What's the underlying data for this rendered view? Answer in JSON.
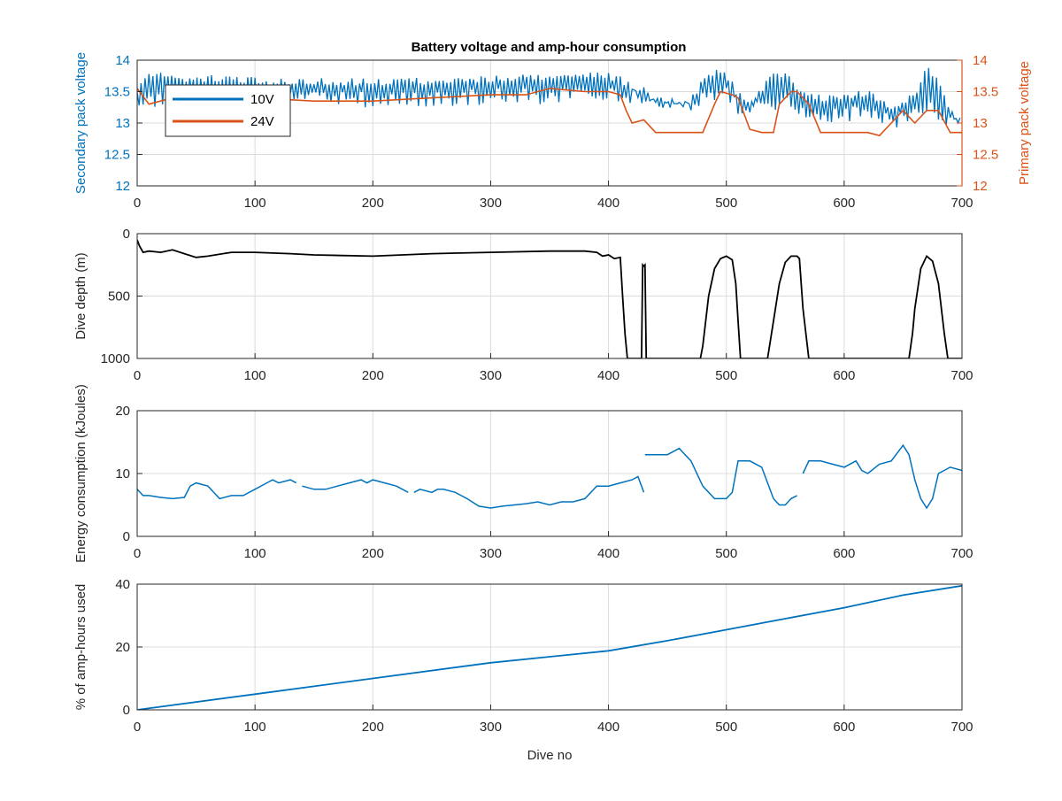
{
  "figure_title": "Battery voltage and amp-hour consumption",
  "colors": {
    "series_10v": "#0072BD",
    "series_24v": "#D95319",
    "depth": "#000000",
    "energy": "#0072BD",
    "amp_hours": "#0072BD",
    "grid": "#dcdcdc",
    "axis": "#262626"
  },
  "chart_data": [
    {
      "type": "line",
      "title": "Battery voltage and amp-hour consumption",
      "xlabel": "",
      "ylabel": "Secondary pack voltage",
      "ylabel_right": "Primary pack voltage",
      "xlim": [
        0,
        700
      ],
      "ylim": [
        12,
        14
      ],
      "ylim_right": [
        12,
        14
      ],
      "xticks": [
        "0",
        "100",
        "200",
        "300",
        "400",
        "500",
        "600",
        "700"
      ],
      "yticks": [
        "12",
        "12.5",
        "13",
        "13.5",
        "14"
      ],
      "yticks_right": [
        "12",
        "12.5",
        "13",
        "13.5",
        "14"
      ],
      "grid": true,
      "legend_placement": "top-left",
      "series": [
        {
          "name": "10V",
          "axis": "left",
          "x": [
            0,
            5,
            10,
            20,
            40,
            60,
            80,
            100,
            130,
            150,
            200,
            250,
            300,
            350,
            380,
            400,
            410,
            420,
            430,
            440,
            460,
            470,
            480,
            490,
            500,
            510,
            520,
            540,
            550,
            560,
            580,
            600,
            620,
            640,
            660,
            670,
            680,
            690,
            700
          ],
          "upper": [
            13.6,
            13.75,
            13.8,
            13.8,
            13.78,
            13.77,
            13.75,
            13.73,
            13.7,
            13.72,
            13.72,
            13.72,
            13.76,
            13.8,
            13.82,
            13.8,
            13.78,
            13.6,
            13.6,
            13.35,
            13.35,
            13.4,
            13.75,
            13.85,
            13.85,
            13.5,
            13.4,
            13.8,
            13.85,
            13.6,
            13.45,
            13.5,
            13.55,
            13.3,
            13.5,
            13.95,
            13.7,
            13.2,
            13.1
          ],
          "lower": [
            13.3,
            13.2,
            13.25,
            13.25,
            13.25,
            13.25,
            13.25,
            13.25,
            13.25,
            13.25,
            13.25,
            13.25,
            13.3,
            13.3,
            13.35,
            13.3,
            13.3,
            13.3,
            13.2,
            13.25,
            13.25,
            13.2,
            13.25,
            13.3,
            13.4,
            13.1,
            13.1,
            13.15,
            13.3,
            13.1,
            13.0,
            13.0,
            13.05,
            12.9,
            13.0,
            13.1,
            13.05,
            12.9,
            12.95
          ]
        },
        {
          "name": "24V",
          "axis": "right",
          "x": [
            0,
            10,
            30,
            60,
            100,
            150,
            200,
            250,
            300,
            330,
            350,
            380,
            400,
            410,
            415,
            420,
            430,
            440,
            460,
            480,
            490,
            495,
            505,
            510,
            520,
            530,
            540,
            545,
            555,
            560,
            570,
            580,
            600,
            620,
            630,
            640,
            650,
            660,
            670,
            680,
            690,
            700
          ],
          "y": [
            13.55,
            13.3,
            13.4,
            13.45,
            13.4,
            13.35,
            13.35,
            13.4,
            13.45,
            13.45,
            13.55,
            13.5,
            13.5,
            13.45,
            13.2,
            13.0,
            13.05,
            12.85,
            12.85,
            12.85,
            13.3,
            13.5,
            13.45,
            13.4,
            12.9,
            12.85,
            12.85,
            13.3,
            13.5,
            13.5,
            13.3,
            12.85,
            12.85,
            12.85,
            12.8,
            13.0,
            13.2,
            13.0,
            13.2,
            13.2,
            12.85,
            12.85
          ]
        }
      ]
    },
    {
      "type": "line",
      "xlabel": "",
      "ylabel": "Dive depth (m)",
      "xlim": [
        0,
        700
      ],
      "ylim": [
        0,
        1000
      ],
      "y_reversed": true,
      "xticks": [
        "0",
        "100",
        "200",
        "300",
        "400",
        "500",
        "600",
        "700"
      ],
      "yticks": [
        "0",
        "500",
        "1000"
      ],
      "grid": true,
      "series": [
        {
          "name": "",
          "x": [
            0,
            2,
            5,
            10,
            20,
            30,
            40,
            50,
            60,
            80,
            100,
            130,
            150,
            200,
            250,
            300,
            350,
            380,
            390,
            395,
            400,
            405,
            410,
            412,
            414,
            416,
            418,
            420,
            425,
            428,
            429,
            430,
            431,
            432,
            433,
            435,
            440,
            460,
            478,
            480,
            485,
            490,
            495,
            500,
            505,
            508,
            510,
            512,
            520,
            530,
            535,
            540,
            545,
            550,
            555,
            560,
            562,
            565,
            570,
            600,
            620,
            650,
            655,
            658,
            660,
            665,
            670,
            675,
            680,
            685,
            688,
            690,
            700
          ],
          "y": [
            50,
            100,
            150,
            140,
            150,
            130,
            160,
            190,
            180,
            150,
            150,
            160,
            170,
            180,
            160,
            150,
            140,
            140,
            150,
            180,
            170,
            200,
            190,
            500,
            800,
            1000,
            1000,
            1000,
            1000,
            1000,
            250,
            260,
            250,
            1000,
            1000,
            1000,
            1000,
            1000,
            1000,
            900,
            500,
            280,
            200,
            180,
            210,
            400,
            700,
            1000,
            1000,
            1000,
            1000,
            700,
            400,
            230,
            180,
            180,
            200,
            600,
            1000,
            1000,
            1000,
            1000,
            1000,
            800,
            600,
            280,
            180,
            220,
            400,
            800,
            1000,
            1000,
            1000
          ]
        }
      ]
    },
    {
      "type": "line",
      "xlabel": "",
      "ylabel": "Energy consumption (kJoules)",
      "xlim": [
        0,
        700
      ],
      "ylim": [
        0,
        20
      ],
      "xticks": [
        "0",
        "100",
        "200",
        "300",
        "400",
        "500",
        "600",
        "700"
      ],
      "yticks": [
        "0",
        "10",
        "20"
      ],
      "grid": true,
      "series": [
        {
          "name": "",
          "segments": [
            {
              "x": [
                0,
                5,
                10,
                20,
                30,
                40,
                45,
                50,
                60,
                65,
                70,
                80,
                90,
                100,
                110,
                115,
                120,
                130,
                135
              ],
              "y": [
                7.5,
                6.5,
                6.5,
                6.2,
                6.0,
                6.2,
                8.0,
                8.5,
                8.0,
                7.0,
                6.0,
                6.5,
                6.5,
                7.5,
                8.5,
                9.0,
                8.5,
                9.0,
                8.5
              ]
            },
            {
              "x": [
                140,
                150,
                160,
                170,
                180,
                190,
                195,
                200,
                210,
                220,
                230
              ],
              "y": [
                8.0,
                7.5,
                7.5,
                8.0,
                8.5,
                9.0,
                8.5,
                9.0,
                8.5,
                8.0,
                7.0
              ]
            },
            {
              "x": [
                235,
                240,
                250,
                255,
                260,
                270,
                275,
                280,
                290,
                300,
                310,
                320,
                330,
                340,
                350,
                360,
                370,
                380,
                390,
                400,
                410,
                420,
                425,
                430
              ],
              "y": [
                7.0,
                7.5,
                7.0,
                7.5,
                7.5,
                7.0,
                6.5,
                6.0,
                4.8,
                4.5,
                4.8,
                5.0,
                5.2,
                5.5,
                5.0,
                5.5,
                5.5,
                6.0,
                8.0,
                8.0,
                8.5,
                9.0,
                9.5,
                7.0
              ]
            },
            {
              "x": [
                431,
                440,
                450,
                460,
                465,
                470,
                480,
                490,
                500,
                505,
                510,
                515,
                520,
                530,
                540,
                545,
                550,
                555,
                560
              ],
              "y": [
                13.0,
                13.0,
                13.0,
                14.0,
                13.0,
                12.0,
                8.0,
                6.0,
                6.0,
                7.0,
                12.0,
                12.0,
                12.0,
                11.0,
                6.0,
                5.0,
                5.0,
                6.0,
                6.5
              ]
            },
            {
              "x": [
                565,
                570,
                580,
                590,
                600,
                610,
                615,
                620,
                630,
                640,
                650,
                655,
                660,
                665,
                670,
                675,
                680,
                690,
                700
              ],
              "y": [
                10.0,
                12.0,
                12.0,
                11.5,
                11.0,
                12.0,
                10.5,
                10.0,
                11.5,
                12.0,
                14.5,
                13.0,
                9.0,
                6.0,
                4.5,
                6.0,
                10.0,
                11.0,
                10.5
              ]
            }
          ]
        }
      ]
    },
    {
      "type": "line",
      "xlabel": "Dive no",
      "ylabel": "% of amp-hours used",
      "xlim": [
        0,
        700
      ],
      "ylim": [
        0,
        40
      ],
      "xticks": [
        "0",
        "100",
        "200",
        "300",
        "400",
        "500",
        "600",
        "700"
      ],
      "yticks": [
        "0",
        "20",
        "40"
      ],
      "grid": true,
      "series": [
        {
          "name": "",
          "x": [
            0,
            100,
            200,
            300,
            400,
            450,
            500,
            550,
            600,
            650,
            700
          ],
          "y": [
            0,
            5,
            10,
            15,
            18.8,
            22,
            25.5,
            29,
            32.5,
            36.5,
            39.5
          ]
        }
      ]
    }
  ]
}
